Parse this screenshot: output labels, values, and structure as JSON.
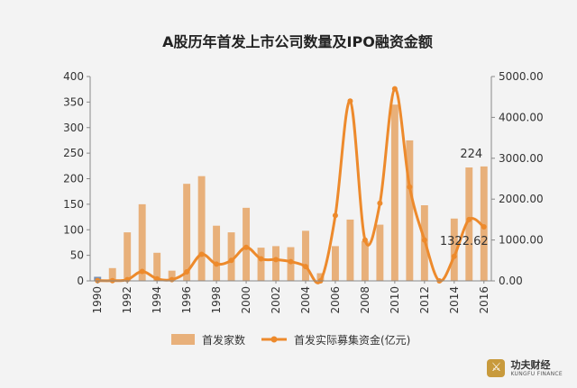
{
  "chart_data": {
    "type": "bar",
    "title": "A股历年首发上市公司数量及IPO融资金额",
    "categories": [
      "1990",
      "1991",
      "1992",
      "1993",
      "1994",
      "1995",
      "1996",
      "1997",
      "1998",
      "1999",
      "2000",
      "2001",
      "2002",
      "2003",
      "2004",
      "2005",
      "2006",
      "2007",
      "2008",
      "2009",
      "2010",
      "2011",
      "2012",
      "2013",
      "2014",
      "2015",
      "2016"
    ],
    "x_tick_labels": [
      "1990",
      "1992",
      "1994",
      "1996",
      "1998",
      "2000",
      "2002",
      "2004",
      "2006",
      "2008",
      "2010",
      "2012",
      "2014",
      "2016"
    ],
    "left_axis": {
      "ticks": [
        "0",
        "50",
        "100",
        "150",
        "200",
        "250",
        "300",
        "350",
        "400"
      ],
      "ylim": [
        0,
        400
      ]
    },
    "right_axis": {
      "ticks": [
        "0.00",
        "1000.00",
        "2000.00",
        "3000.00",
        "4000.00",
        "5000.00"
      ],
      "ylim": [
        0,
        5000
      ]
    },
    "series": [
      {
        "name": "首发家数",
        "type": "bar",
        "axis": "left",
        "color": "#e8b07a",
        "values": [
          8,
          25,
          95,
          150,
          55,
          20,
          190,
          205,
          108,
          95,
          143,
          65,
          68,
          66,
          98,
          15,
          68,
          120,
          78,
          110,
          345,
          275,
          148,
          0,
          122,
          222,
          224
        ]
      },
      {
        "name": "首发实际募集资金(亿元)",
        "type": "line",
        "axis": "right",
        "color": "#ed8a2c",
        "values": [
          5,
          5,
          30,
          230,
          50,
          30,
          220,
          650,
          410,
          500,
          820,
          540,
          520,
          470,
          350,
          0,
          1600,
          4400,
          1000,
          1900,
          4700,
          2300,
          1000,
          0,
          600,
          1500,
          1322.62
        ]
      }
    ],
    "annotations": [
      {
        "text": "224",
        "category": "2016",
        "series": "首发家数"
      },
      {
        "text": "1322.62",
        "category": "2016",
        "series": "首发实际募集资金(亿元)"
      }
    ],
    "legend": {
      "position": "bottom"
    }
  },
  "watermark": {
    "name": "功夫财经",
    "sub": "KUNGFU FINANCE",
    "icon": "kungfu-figure-icon"
  }
}
